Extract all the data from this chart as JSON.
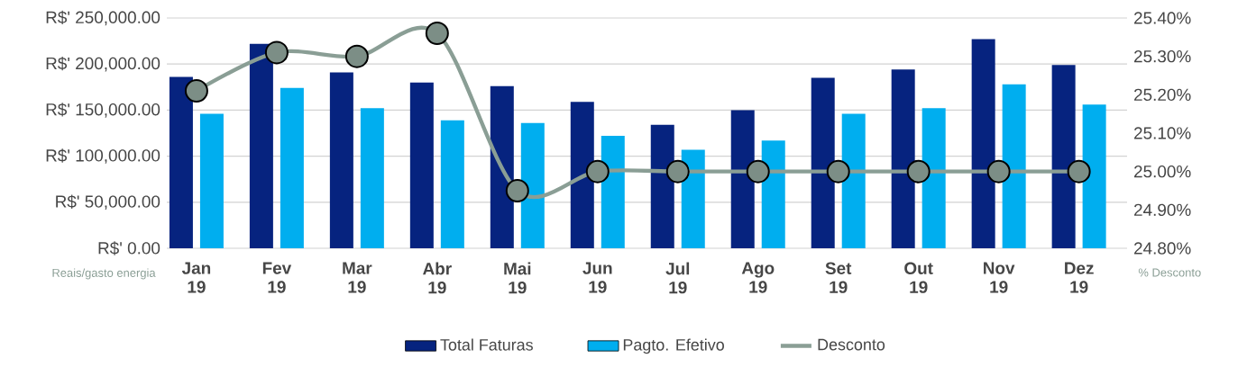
{
  "chart_data": {
    "type": "bar",
    "categories": [
      "Jan 19",
      "Fev 19",
      "Mar 19",
      "Abr 19",
      "Mai 19",
      "Jun 19",
      "Jul 19",
      "Ago 19",
      "Set 19",
      "Out 19",
      "Nov 19",
      "Dez 19"
    ],
    "series": [
      {
        "name": "Total Faturas",
        "type": "bar",
        "color": "#06237f",
        "values": [
          186000,
          222000,
          191000,
          180000,
          176000,
          159000,
          134000,
          150000,
          185000,
          194000,
          227000,
          199000
        ]
      },
      {
        "name": "Pagto. Efetivo",
        "type": "bar",
        "color": "#00aeef",
        "values": [
          146000,
          174000,
          152000,
          139000,
          136000,
          122000,
          107000,
          117000,
          146000,
          152000,
          178000,
          156000
        ]
      },
      {
        "name": "Desconto",
        "type": "line",
        "axis": "y2",
        "color": "#8a9e95",
        "marker": "circle",
        "line_style": "solid",
        "values": [
          25.21,
          25.31,
          25.3,
          25.36,
          24.95,
          25.0,
          25.0,
          25.0,
          25.0,
          25.0,
          25.0,
          25.0
        ]
      }
    ],
    "ylabel": "Reais/gasto energia",
    "y2label": "% Desconto",
    "ylim": [
      0,
      250000
    ],
    "yticks": [
      {
        "value": 0,
        "label": "R$' 0.00"
      },
      {
        "value": 50000,
        "label": "R$' 50,000.00"
      },
      {
        "value": 100000,
        "label": "R$' 100,000.00"
      },
      {
        "value": 150000,
        "label": "R$' 150,000.00"
      },
      {
        "value": 200000,
        "label": "R$' 200,000.00"
      },
      {
        "value": 250000,
        "label": "R$' 250,000.00"
      }
    ],
    "y2lim": [
      24.8,
      25.4
    ],
    "y2ticks": [
      {
        "value": 24.8,
        "label": "24.80%"
      },
      {
        "value": 24.9,
        "label": "24.90%"
      },
      {
        "value": 25.0,
        "label": "25.00%"
      },
      {
        "value": 25.1,
        "label": "25.10%"
      },
      {
        "value": 25.2,
        "label": "25.20%"
      },
      {
        "value": 25.3,
        "label": "25.30%"
      },
      {
        "value": 25.4,
        "label": "25.40%"
      }
    ],
    "grid": "y",
    "legend": "bottom"
  }
}
